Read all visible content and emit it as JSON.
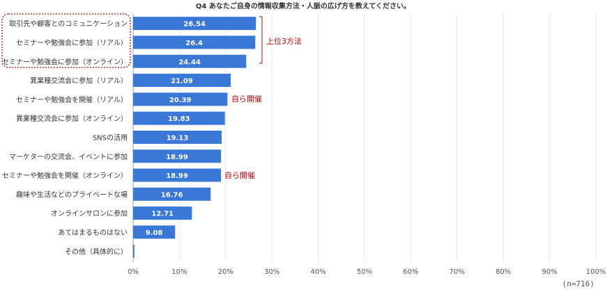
{
  "chart_data": {
    "type": "bar",
    "orientation": "horizontal",
    "title": "Q4 あなたご自身の情報収集方法・人脈の広げ方を教えてください。",
    "categories": [
      "取引先や顧客とのコミュニケーション",
      "セミナーや勉強会に参加（リアル）",
      "セミナーや勉強会に参加（オンライン）",
      "異業種交流会に参加（リアル）",
      "セミナーや勉強会を開催（リアル）",
      "異業種交流会に参加（オンライン）",
      "SNSの活用",
      "マーケターの交流会、イベントに参加",
      "セミナーや勉強会を開催（オンライン）",
      "趣味や生活などのプライベートな場",
      "オンラインサロンに参加",
      "あてはまるものはない",
      "その他（具体的に）"
    ],
    "values": [
      26.54,
      26.4,
      24.44,
      21.09,
      20.39,
      19.83,
      19.13,
      18.99,
      18.99,
      16.76,
      12.71,
      9.08,
      0.28
    ],
    "value_labels": [
      "26.54",
      "26.4",
      "24.44",
      "21.09",
      "20.39",
      "19.83",
      "19.13",
      "18.99",
      "18.99",
      "16.76",
      "12.71",
      "9.08",
      ""
    ],
    "xlim": [
      0,
      100
    ],
    "ticks": [
      "0%",
      "10%",
      "20%",
      "30%",
      "40%",
      "50%",
      "60%",
      "70%",
      "80%",
      "90%",
      "100%"
    ],
    "annotations": {
      "top3": "上位3方法",
      "self_hosted": [
        "自ら開催",
        "自ら開催"
      ]
    },
    "sample_note": "(n=716)"
  },
  "colors": {
    "bar": "#3a78d8",
    "grid": "#e3e3e3",
    "annotation": "#c00000",
    "label": "#333333"
  }
}
